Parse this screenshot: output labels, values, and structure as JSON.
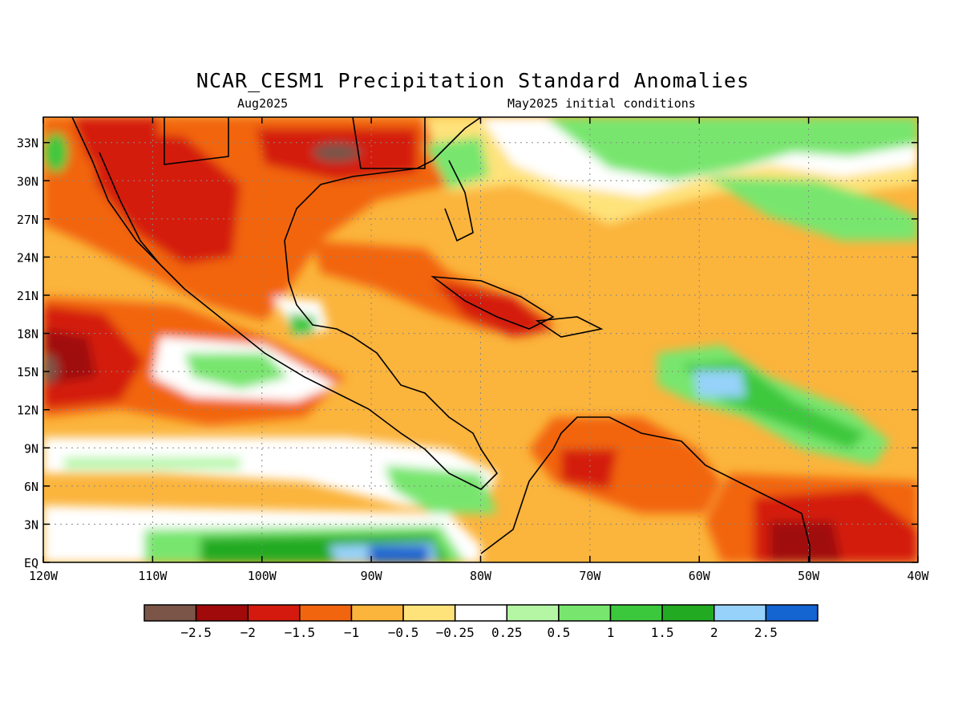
{
  "title": "NCAR_CESM1 Precipitation Standard Anomalies",
  "subtitle_left": "Aug2025",
  "subtitle_right": "May2025 initial conditions",
  "map": {
    "lon_range": [
      -120,
      -40
    ],
    "lat_range": [
      0,
      35
    ],
    "lat_ticks": [
      {
        "value": 33,
        "label": "33N"
      },
      {
        "value": 30,
        "label": "30N"
      },
      {
        "value": 27,
        "label": "27N"
      },
      {
        "value": 24,
        "label": "24N"
      },
      {
        "value": 21,
        "label": "21N"
      },
      {
        "value": 18,
        "label": "18N"
      },
      {
        "value": 15,
        "label": "15N"
      },
      {
        "value": 12,
        "label": "12N"
      },
      {
        "value": 9,
        "label": "9N"
      },
      {
        "value": 6,
        "label": "6N"
      },
      {
        "value": 3,
        "label": "3N"
      },
      {
        "value": 0,
        "label": "EQ"
      }
    ],
    "lon_ticks": [
      {
        "value": -120,
        "label": "120W"
      },
      {
        "value": -110,
        "label": "110W"
      },
      {
        "value": -100,
        "label": "100W"
      },
      {
        "value": -90,
        "label": "90W"
      },
      {
        "value": -80,
        "label": "80W"
      },
      {
        "value": -70,
        "label": "70W"
      },
      {
        "value": -60,
        "label": "60W"
      },
      {
        "value": -50,
        "label": "50W"
      },
      {
        "value": -40,
        "label": "40W"
      }
    ],
    "grid": true
  },
  "legend": {
    "colors": [
      "#7a5548",
      "#a00a0a",
      "#d41a0e",
      "#f2650f",
      "#fbb43c",
      "#fee27a",
      "#ffffff",
      "#b4f6a4",
      "#78e66e",
      "#3cc83c",
      "#22aa22",
      "#96d2fa",
      "#1464d2"
    ],
    "labels": [
      "−2.5",
      "−2",
      "−1.5",
      "−1",
      "−0.5",
      "−0.25",
      "0.25",
      "0.5",
      "1",
      "1.5",
      "2",
      "2.5"
    ]
  }
}
